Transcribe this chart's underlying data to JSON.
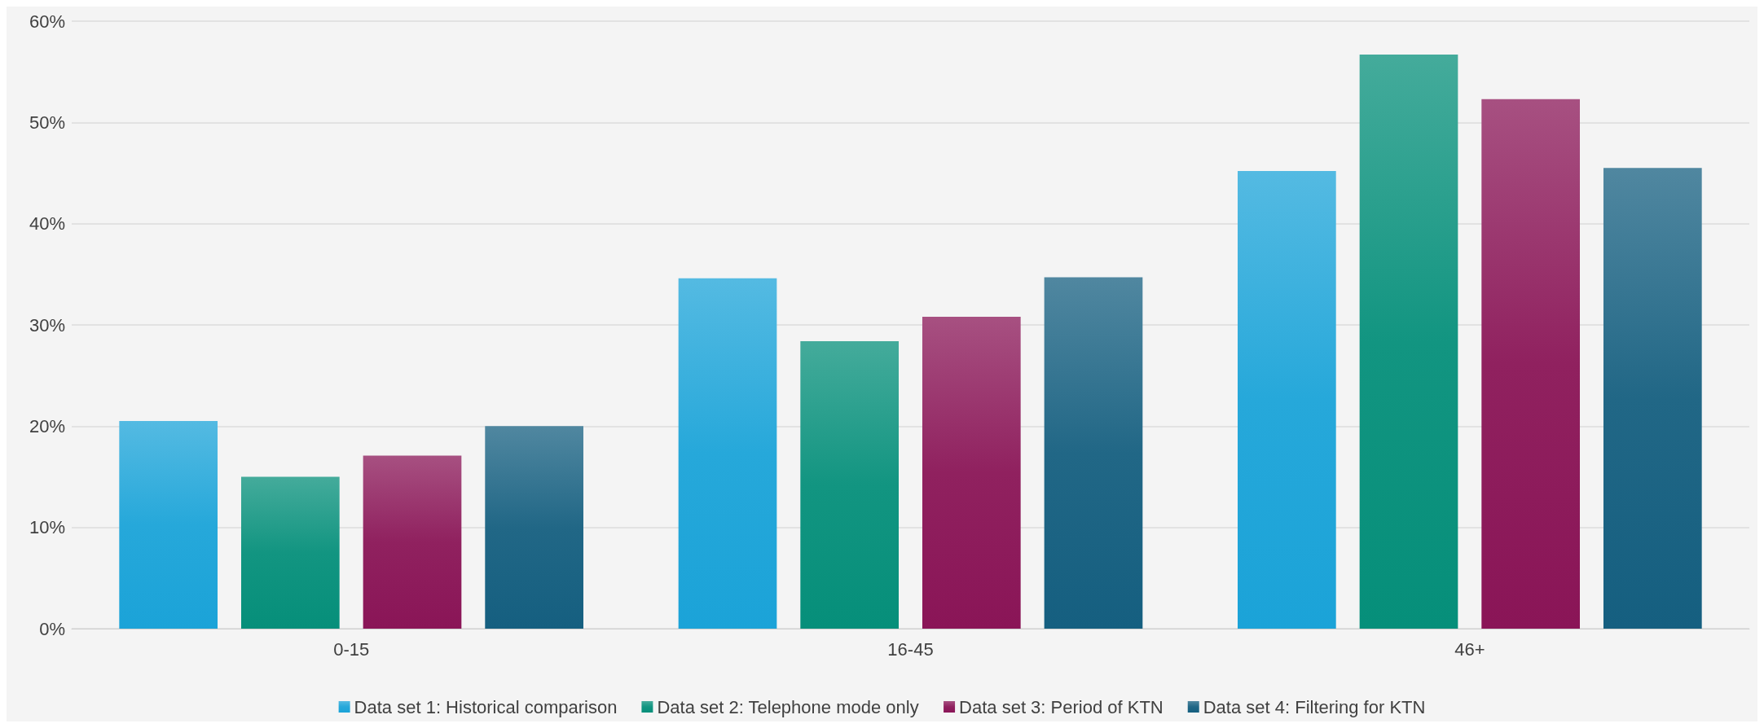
{
  "chart_data": {
    "type": "bar",
    "categories": [
      "0-15",
      "16-45",
      "46+"
    ],
    "series": [
      {
        "name": "Data set 1: Historical comparison",
        "color": "#1ba3d8",
        "values": [
          20.5,
          34.6,
          45.2
        ]
      },
      {
        "name": "Data set 2: Telephone mode only",
        "color": "#068f7a",
        "values": [
          15.0,
          28.4,
          56.7
        ]
      },
      {
        "name": "Data set 3: Period of KTN",
        "color": "#8a1557",
        "values": [
          17.1,
          30.8,
          52.3
        ]
      },
      {
        "name": "Data set 4: Filtering for KTN",
        "color": "#155f80",
        "values": [
          20.0,
          34.7,
          45.5
        ]
      }
    ],
    "ylim": [
      0,
      60
    ],
    "yticks": [
      {
        "value": 0,
        "label": "0%"
      },
      {
        "value": 10,
        "label": "10%"
      },
      {
        "value": 20,
        "label": "20%"
      },
      {
        "value": 30,
        "label": "30%"
      },
      {
        "value": 40,
        "label": "40%"
      },
      {
        "value": 50,
        "label": "50%"
      },
      {
        "value": 60,
        "label": "60%"
      }
    ],
    "grid": "y",
    "legend": "bottom"
  }
}
